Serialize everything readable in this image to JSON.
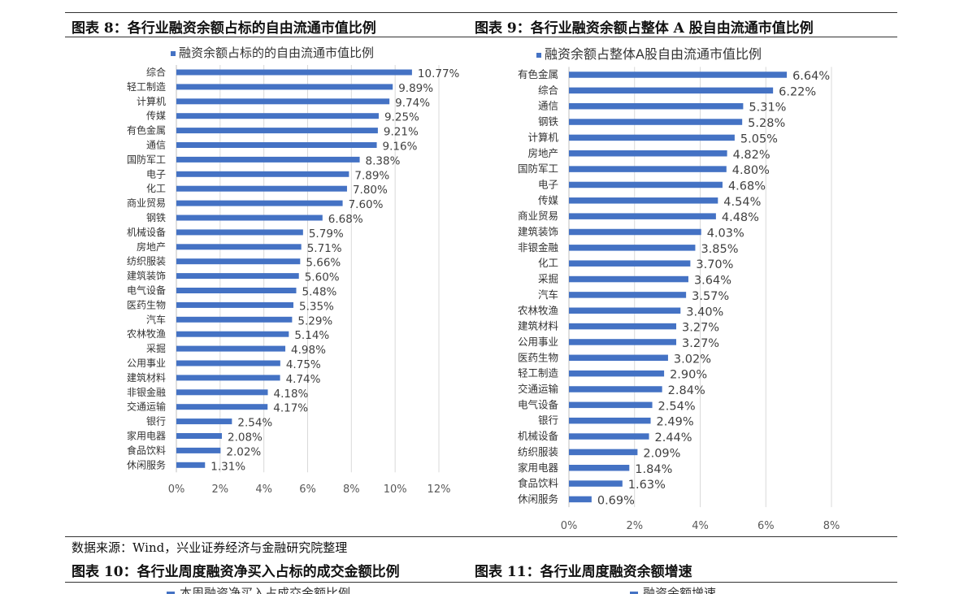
{
  "figures": {
    "fig8_title": "图表 8：各行业融资余额占标的自由流通市值比例",
    "fig9_title": "图表 9：各行业融资余额占整体 A 股自由流通市值比例",
    "source": "数据来源：Wind，兴业证券经济与金融研究院整理",
    "fig10_title": "图表 10：各行业周度融资净买入占标的成交金额比例",
    "fig11_title": "图表 11：各行业周度融资余额增速",
    "fig10_legend": "本周融资净买入占成交金额比例",
    "fig11_legend": "融资余额增速"
  },
  "colors": {
    "bar": "#4472C4",
    "grid": "#d9d9d9",
    "text": "#333333"
  },
  "chart_data": [
    {
      "type": "bar",
      "orientation": "horizontal",
      "title": "融资余额占标的的自由流通市值比例",
      "legend": "融资余额占标的的自由流通市值比例",
      "xlim": [
        0,
        12
      ],
      "xticks": [
        "0%",
        "2%",
        "4%",
        "6%",
        "8%",
        "10%",
        "12%"
      ],
      "categories": [
        "综合",
        "轻工制造",
        "计算机",
        "传媒",
        "有色金属",
        "通信",
        "国防军工",
        "电子",
        "化工",
        "商业贸易",
        "钢铁",
        "机械设备",
        "房地产",
        "纺织服装",
        "建筑装饰",
        "电气设备",
        "医药生物",
        "汽车",
        "农林牧渔",
        "采掘",
        "公用事业",
        "建筑材料",
        "非银金融",
        "交通运输",
        "银行",
        "家用电器",
        "食品饮料",
        "休闲服务"
      ],
      "values": [
        10.77,
        9.89,
        9.74,
        9.25,
        9.21,
        9.16,
        8.38,
        7.89,
        7.8,
        7.6,
        6.68,
        5.79,
        5.71,
        5.66,
        5.6,
        5.48,
        5.35,
        5.29,
        5.14,
        4.98,
        4.75,
        4.74,
        4.18,
        4.17,
        2.54,
        2.08,
        2.02,
        1.31
      ],
      "labels": [
        "10.77%",
        "9.89%",
        "9.74%",
        "9.25%",
        "9.21%",
        "9.16%",
        "8.38%",
        "7.89%",
        "7.80%",
        "7.60%",
        "6.68%",
        "5.79%",
        "5.71%",
        "5.66%",
        "5.60%",
        "5.48%",
        "5.35%",
        "5.29%",
        "5.14%",
        "4.98%",
        "4.75%",
        "4.74%",
        "4.18%",
        "4.17%",
        "2.54%",
        "2.08%",
        "2.02%",
        "1.31%"
      ]
    },
    {
      "type": "bar",
      "orientation": "horizontal",
      "title": "融资余额占整体A股自由流通市值比例",
      "legend": "融资余额占整体A股自由流通市值比例",
      "xlim": [
        0,
        8
      ],
      "xticks": [
        "0%",
        "2%",
        "4%",
        "6%",
        "8%"
      ],
      "categories": [
        "有色金属",
        "综合",
        "通信",
        "钢铁",
        "计算机",
        "房地产",
        "国防军工",
        "电子",
        "传媒",
        "商业贸易",
        "建筑装饰",
        "非银金融",
        "化工",
        "采掘",
        "汽车",
        "农林牧渔",
        "建筑材料",
        "公用事业",
        "医药生物",
        "轻工制造",
        "交通运输",
        "电气设备",
        "银行",
        "机械设备",
        "纺织服装",
        "家用电器",
        "食品饮料",
        "休闲服务"
      ],
      "values": [
        6.64,
        6.22,
        5.31,
        5.28,
        5.05,
        4.82,
        4.8,
        4.68,
        4.54,
        4.48,
        4.03,
        3.85,
        3.7,
        3.64,
        3.57,
        3.4,
        3.27,
        3.27,
        3.02,
        2.9,
        2.84,
        2.54,
        2.49,
        2.44,
        2.09,
        1.84,
        1.63,
        0.69
      ],
      "labels": [
        "6.64%",
        "6.22%",
        "5.31%",
        "5.28%",
        "5.05%",
        "4.82%",
        "4.80%",
        "4.68%",
        "4.54%",
        "4.48%",
        "4.03%",
        "3.85%",
        "3.70%",
        "3.64%",
        "3.57%",
        "3.40%",
        "3.27%",
        "3.27%",
        "3.02%",
        "2.90%",
        "2.84%",
        "2.54%",
        "2.49%",
        "2.44%",
        "2.09%",
        "1.84%",
        "1.63%",
        "0.69%"
      ]
    }
  ]
}
